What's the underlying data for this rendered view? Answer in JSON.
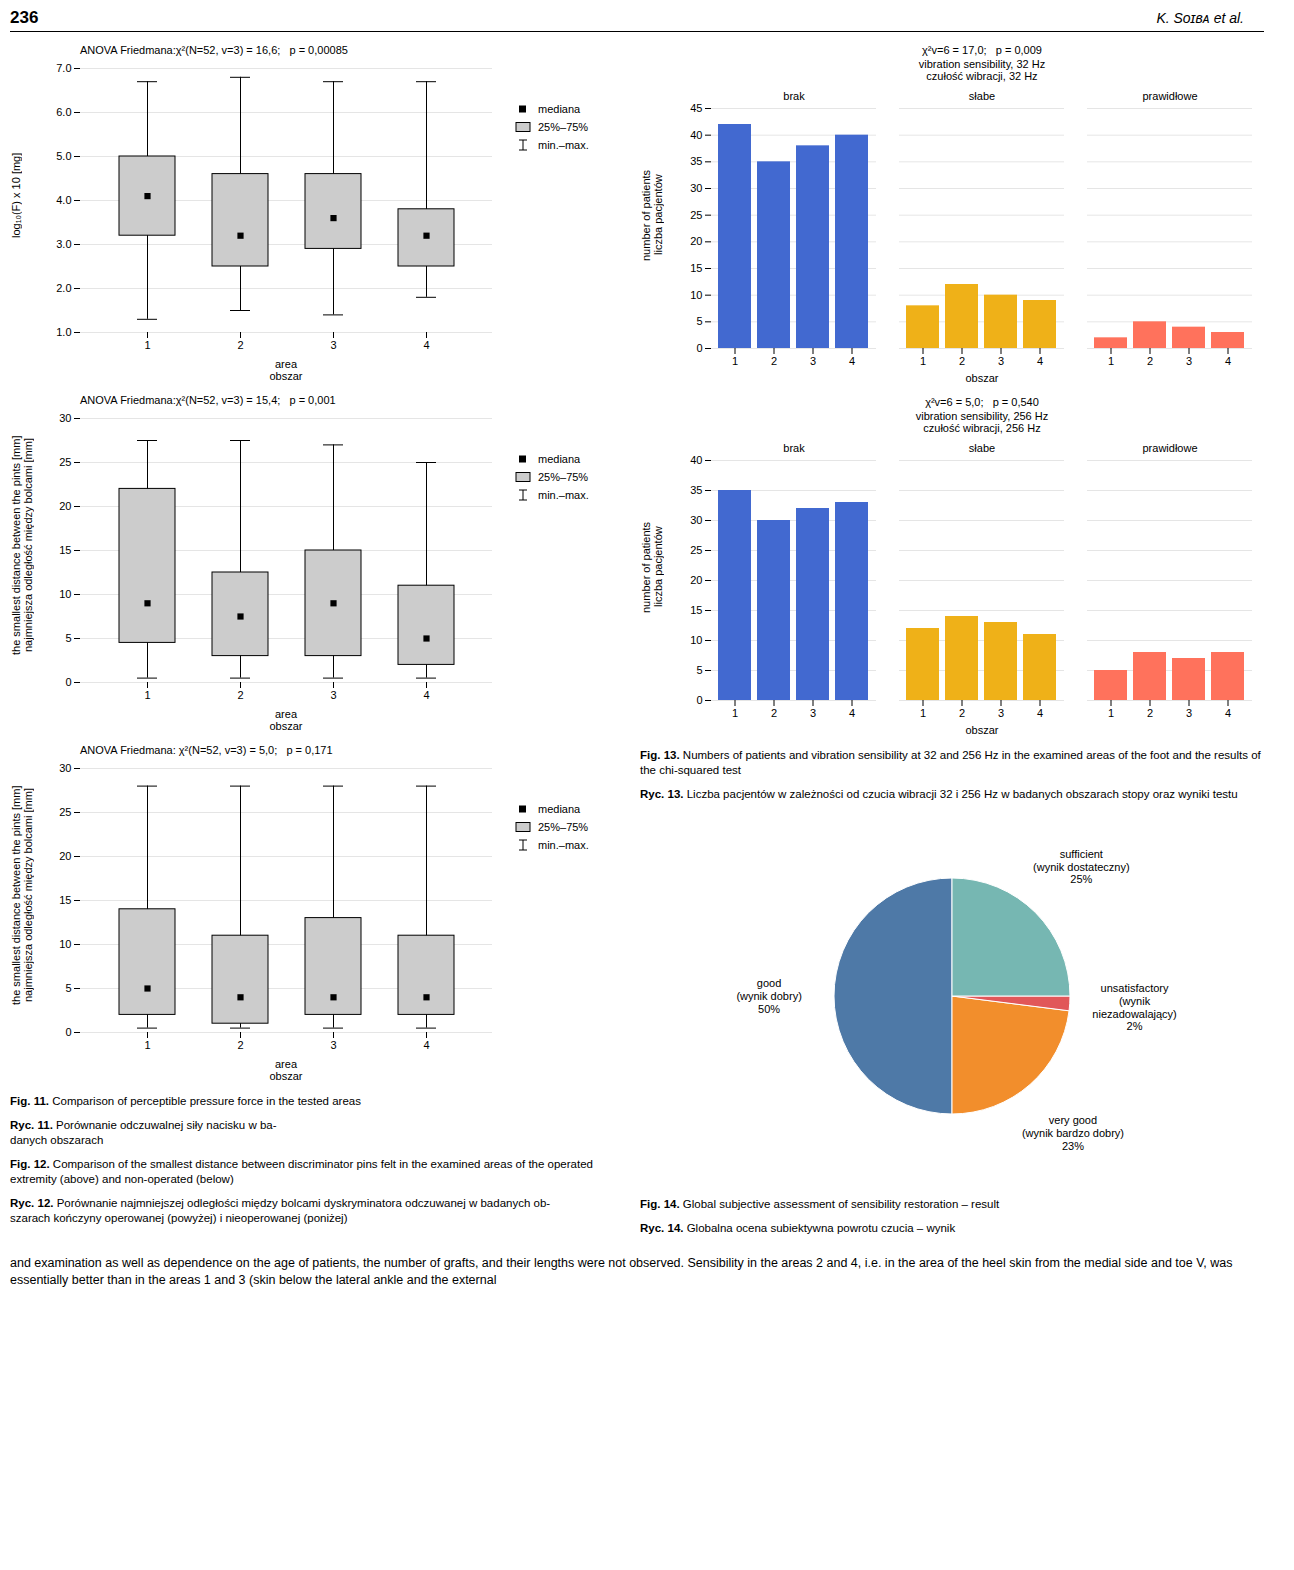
{
  "chart_data": [
    {
      "type": "box",
      "title": "ANOVA Friedmana:χ²(N=52, v=3) = 16,6;   p = 0,00085",
      "xlabel": "area\nobszar",
      "ylabel": "log₁₀(F) x 10 [mg]",
      "categories": [
        "1",
        "2",
        "3",
        "4"
      ],
      "series": [
        {
          "name": "mediana",
          "type": "dot",
          "marker": "square",
          "values": [
            4.1,
            3.2,
            3.6,
            3.2
          ]
        },
        {
          "name": "25%–75%",
          "type": "box",
          "low": [
            3.2,
            2.5,
            2.9,
            2.5
          ],
          "high": [
            5.0,
            4.6,
            4.6,
            3.8
          ]
        },
        {
          "name": "min.–max.",
          "type": "whisker",
          "low": [
            1.3,
            1.5,
            1.4,
            1.8
          ],
          "high": [
            6.7,
            6.8,
            6.7,
            6.7
          ]
        }
      ],
      "ylim": [
        1,
        7
      ],
      "yticks": [
        1,
        2,
        3,
        4,
        5,
        6,
        7
      ],
      "grid": true,
      "legend": "right",
      "annotations": [
        "Fig. 11. Comparison of perceptible pressure force in the tested areas",
        "Ryc. 11. Porównanie odczuwalnej siły nacisku w ba-\ndanych obszarach"
      ]
    },
    {
      "type": "box",
      "title": "ANOVA Friedmana:χ²(N=52, v=3) = 15,4;   p = 0,001",
      "xlabel": "area\nobszar",
      "ylabel": "the smallest distance between the pints [mm]\nnajmniejsza odległość między bolcami [mm]",
      "categories": [
        "1",
        "2",
        "3",
        "4"
      ],
      "series": [
        {
          "name": "mediana",
          "type": "dot",
          "marker": "square",
          "values": [
            9.0,
            7.5,
            9.0,
            5.0
          ]
        },
        {
          "name": "25%–75%",
          "type": "box",
          "low": [
            4.5,
            3.0,
            3.0,
            2.0
          ],
          "high": [
            22.0,
            12.5,
            15.0,
            11.0
          ]
        },
        {
          "name": "min.–max.",
          "type": "whisker",
          "low": [
            0.5,
            0.5,
            0.5,
            0.5
          ],
          "high": [
            27.5,
            27.5,
            27.0,
            25.0
          ]
        }
      ],
      "ylim": [
        0,
        30
      ],
      "yticks": [
        0,
        5,
        10,
        15,
        20,
        25,
        30
      ],
      "grid": true,
      "legend": "right"
    },
    {
      "type": "box",
      "title": "ANOVA Friedmana: χ²(N=52, v=3) = 5,0;   p = 0,171",
      "xlabel": "area\nobszar",
      "ylabel": "the smallest distance between the pints [mm]\nnajmniejsza odległość między bolcami [mm]",
      "categories": [
        "1",
        "2",
        "3",
        "4"
      ],
      "series": [
        {
          "name": "mediana",
          "type": "dot",
          "marker": "square",
          "values": [
            5.0,
            4.0,
            4.0,
            4.0
          ]
        },
        {
          "name": "25%–75%",
          "type": "box",
          "low": [
            2.0,
            1.0,
            2.0,
            2.0
          ],
          "high": [
            14.0,
            11.0,
            13.0,
            11.0
          ]
        },
        {
          "name": "min.–max.",
          "type": "whisker",
          "low": [
            0.5,
            0.5,
            0.5,
            0.5
          ],
          "high": [
            28.0,
            28.0,
            28.0,
            28.0
          ]
        }
      ],
      "ylim": [
        0,
        30
      ],
      "yticks": [
        0,
        5,
        10,
        15,
        20,
        25,
        30
      ],
      "grid": true,
      "legend": "right",
      "annotations": [
        "Fig. 12. Comparison of the smallest distance between discriminator pins felt in the examined areas of the operated extremity (above) and non-operated (below)",
        "Ryc. 12. Porównanie najmniejszej odległości między bolcami dyskryminatora odczuwanej w badanych ob-\nszarach kończyny operowanej (powyżej) i nieoperowanej (poniżej)"
      ]
    },
    {
      "type": "bar",
      "title": "χ²v=6 = 17,0;   p = 0,009",
      "xlabel": "vibration sensibility, 32 Hz\nczułość wibracji, 32 Hz",
      "group_label": "obszar",
      "ylabel": "number of patients\nliczba pacjentów",
      "categories": [
        "brak",
        "słabe",
        "prawidłowe"
      ],
      "series": [
        {
          "name": "1",
          "values": [
            42,
            8,
            2
          ]
        },
        {
          "name": "2",
          "values": [
            35,
            12,
            5
          ]
        },
        {
          "name": "3",
          "values": [
            38,
            10,
            4
          ]
        },
        {
          "name": "4",
          "values": [
            40,
            9,
            3
          ]
        }
      ],
      "ylim": [
        0,
        45
      ],
      "yticks": [
        0,
        5,
        10,
        15,
        20,
        25,
        30,
        35,
        40,
        45
      ],
      "grid": true
    },
    {
      "type": "bar",
      "title": "χ²v=6 = 5,0;   p = 0,540",
      "xlabel": "vibration sensibility, 256 Hz\nczułość wibracji, 256 Hz",
      "group_label": "obszar",
      "ylabel": "number of patients\nliczba pacjentów",
      "categories": [
        "brak",
        "słabe",
        "prawidłowe"
      ],
      "series": [
        {
          "name": "1",
          "values": [
            35,
            12,
            5
          ]
        },
        {
          "name": "2",
          "values": [
            30,
            14,
            8
          ]
        },
        {
          "name": "3",
          "values": [
            32,
            13,
            7
          ]
        },
        {
          "name": "4",
          "values": [
            33,
            11,
            8
          ]
        }
      ],
      "ylim": [
        0,
        40
      ],
      "yticks": [
        0,
        5,
        10,
        15,
        20,
        25,
        30,
        35,
        40
      ],
      "grid": true,
      "annotations": [
        "Fig. 13. Numbers of patients and vibration sensibility at 32 and 256 Hz in the examined areas of the foot and the results of the chi-squared test",
        "Ryc. 13. Liczba pacjentów w zależności od czucia wibracji 32 i 256 Hz w badanych obszarach stopy oraz wyniki testu"
      ]
    },
    {
      "type": "pie",
      "categories": [
        "good\n(wynik dobry)",
        "very good\n(wynik bardzo dobry)",
        "unsatisfactory\n(wynik\nniezadowalający)",
        "sufficient\n(wynik dostateczny)"
      ],
      "values": [
        50,
        23,
        2,
        25
      ],
      "value_labels": [
        "50%",
        "23%",
        "2%",
        "25%"
      ],
      "data_labels": true,
      "annotations": [
        "Fig. 14. Global subjective assessment of sensibility restoration – result",
        "Ryc. 14. Globalna ocena subiektywna powrotu czucia – wynik"
      ]
    }
  ],
  "annotations": [
    "236",
    "K. Sᴏɪʙᴀ et al.",
    "and examination as well as dependence on the age of patients, the number of grafts, and their lengths were not observed. Sensibility in the areas 2 and 4, i.e. in the area of the heel skin from the medial side and toe V, was essentially better than in the areas 1 and 3 (skin below the lateral ankle and the external"
  ]
}
